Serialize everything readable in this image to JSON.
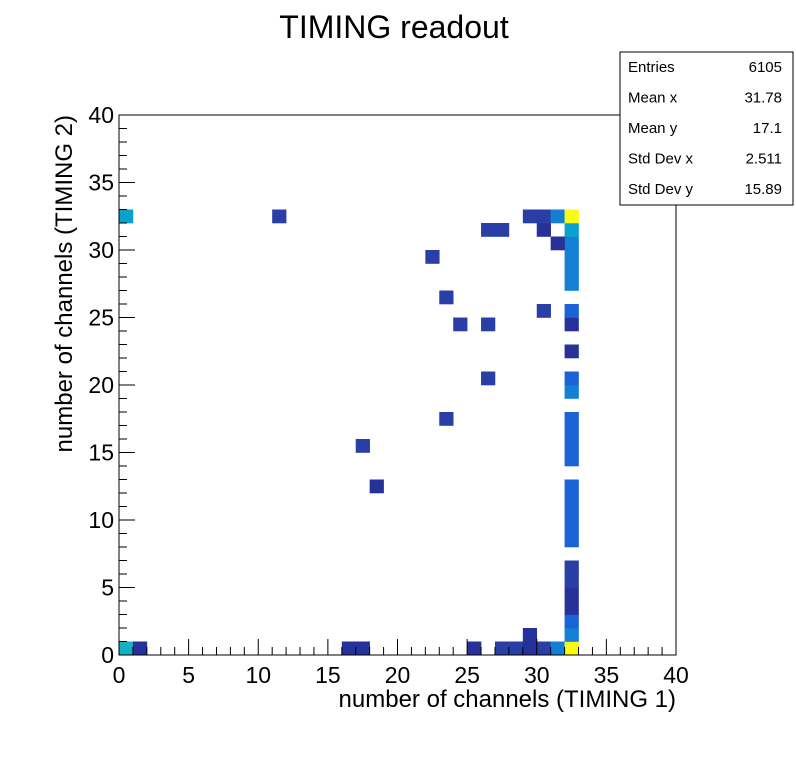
{
  "chart_data": {
    "type": "heatmap",
    "title": "TIMING readout",
    "xlabel": "number of channels (TIMING 1)",
    "ylabel": "number of channels (TIMING 2)",
    "xlim": [
      0,
      40
    ],
    "ylim": [
      0,
      40
    ],
    "x_ticks": [
      "0",
      "5",
      "10",
      "15",
      "20",
      "25",
      "30",
      "35",
      "40"
    ],
    "y_ticks": [
      "0",
      "5",
      "10",
      "15",
      "20",
      "25",
      "30",
      "35",
      "40"
    ],
    "grid": false,
    "bin_width": 1,
    "colors": {
      "low": "#2a3fa5",
      "darklow": "#27319a",
      "mid": "#1a63d6",
      "midhigh": "#1380d6",
      "high": "#0aa0d0",
      "teal": "#15b0c2",
      "peak": "#fafa14"
    },
    "cells": [
      {
        "x": 0,
        "y": 0,
        "c": "teal"
      },
      {
        "x": 1,
        "y": 0,
        "c": "darklow"
      },
      {
        "x": 16,
        "y": 0,
        "c": "darklow"
      },
      {
        "x": 17,
        "y": 0,
        "c": "darklow"
      },
      {
        "x": 25,
        "y": 0,
        "c": "darklow"
      },
      {
        "x": 27,
        "y": 0,
        "c": "low"
      },
      {
        "x": 28,
        "y": 0,
        "c": "low"
      },
      {
        "x": 29,
        "y": 0,
        "c": "darklow"
      },
      {
        "x": 30,
        "y": 0,
        "c": "low"
      },
      {
        "x": 31,
        "y": 0,
        "c": "midhigh"
      },
      {
        "x": 32,
        "y": 0,
        "c": "peak"
      },
      {
        "x": 29,
        "y": 1,
        "c": "darklow"
      },
      {
        "x": 32,
        "y": 1,
        "c": "midhigh"
      },
      {
        "x": 32,
        "y": 2,
        "c": "mid"
      },
      {
        "x": 32,
        "y": 3,
        "c": "darklow"
      },
      {
        "x": 32,
        "y": 4,
        "c": "darklow"
      },
      {
        "x": 32,
        "y": 5,
        "c": "low"
      },
      {
        "x": 32,
        "y": 6,
        "c": "low"
      },
      {
        "x": 32,
        "y": 8,
        "c": "mid"
      },
      {
        "x": 32,
        "y": 9,
        "c": "mid"
      },
      {
        "x": 32,
        "y": 10,
        "c": "mid"
      },
      {
        "x": 32,
        "y": 11,
        "c": "mid"
      },
      {
        "x": 32,
        "y": 12,
        "c": "mid"
      },
      {
        "x": 18,
        "y": 12,
        "c": "darklow"
      },
      {
        "x": 32,
        "y": 14,
        "c": "mid"
      },
      {
        "x": 32,
        "y": 15,
        "c": "mid"
      },
      {
        "x": 17,
        "y": 15,
        "c": "low"
      },
      {
        "x": 32,
        "y": 16,
        "c": "mid"
      },
      {
        "x": 32,
        "y": 17,
        "c": "mid"
      },
      {
        "x": 23,
        "y": 17,
        "c": "low"
      },
      {
        "x": 32,
        "y": 19,
        "c": "midhigh"
      },
      {
        "x": 32,
        "y": 20,
        "c": "mid"
      },
      {
        "x": 26,
        "y": 20,
        "c": "low"
      },
      {
        "x": 32,
        "y": 22,
        "c": "darklow"
      },
      {
        "x": 24,
        "y": 24,
        "c": "low"
      },
      {
        "x": 26,
        "y": 24,
        "c": "low"
      },
      {
        "x": 32,
        "y": 24,
        "c": "darklow"
      },
      {
        "x": 30,
        "y": 25,
        "c": "low"
      },
      {
        "x": 32,
        "y": 25,
        "c": "mid"
      },
      {
        "x": 23,
        "y": 26,
        "c": "low"
      },
      {
        "x": 32,
        "y": 27,
        "c": "midhigh"
      },
      {
        "x": 32,
        "y": 28,
        "c": "midhigh"
      },
      {
        "x": 32,
        "y": 29,
        "c": "midhigh"
      },
      {
        "x": 22,
        "y": 29,
        "c": "low"
      },
      {
        "x": 32,
        "y": 30,
        "c": "midhigh"
      },
      {
        "x": 31,
        "y": 30,
        "c": "darklow"
      },
      {
        "x": 26,
        "y": 31,
        "c": "low"
      },
      {
        "x": 27,
        "y": 31,
        "c": "low"
      },
      {
        "x": 30,
        "y": 31,
        "c": "darklow"
      },
      {
        "x": 32,
        "y": 31,
        "c": "high"
      },
      {
        "x": 0,
        "y": 32,
        "c": "high"
      },
      {
        "x": 11,
        "y": 32,
        "c": "low"
      },
      {
        "x": 29,
        "y": 32,
        "c": "low"
      },
      {
        "x": 30,
        "y": 32,
        "c": "low"
      },
      {
        "x": 31,
        "y": 32,
        "c": "midhigh"
      },
      {
        "x": 32,
        "y": 32,
        "c": "peak"
      }
    ]
  },
  "stats": {
    "rows": [
      {
        "label": "Entries",
        "value": "6105"
      },
      {
        "label": "Mean x",
        "value": "31.78"
      },
      {
        "label": "Mean y",
        "value": "17.1"
      },
      {
        "label": "Std Dev x",
        "value": "2.511"
      },
      {
        "label": "Std Dev y",
        "value": "15.89"
      }
    ]
  }
}
